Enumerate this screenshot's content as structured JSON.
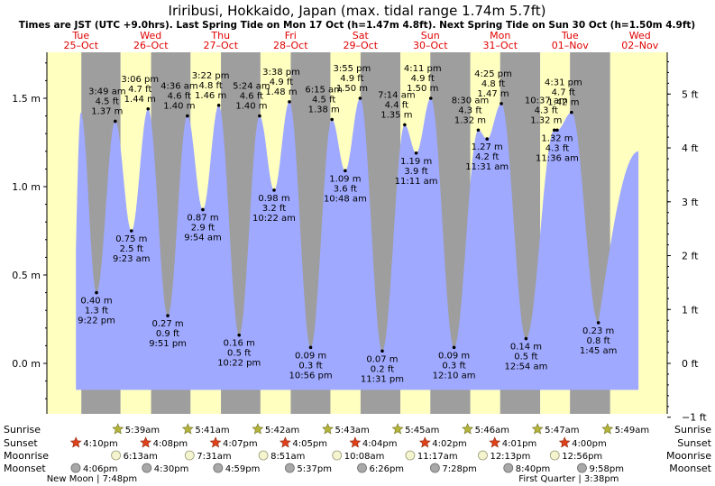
{
  "chart_data": {
    "type": "area",
    "title": "Iriribusi, Hokkaido, Japan (max. tidal range 1.74m 5.7ft)",
    "subtitle": "Times are JST (UTC +9.0hrs). Last Spring Tide on Mon 17 Oct (h=1.47m 4.8ft). Next Spring Tide on Sun 30 Oct (h=1.50m 4.9ft)",
    "ylim_m": [
      -0.25,
      1.75
    ],
    "y_ticks_m": [
      {
        "v": 1.5,
        "label": "1.5 m"
      },
      {
        "v": 1.0,
        "label": "1.0 m"
      },
      {
        "v": 0.5,
        "label": "0.5 m"
      },
      {
        "v": 0.0,
        "label": "0.0 m"
      }
    ],
    "y_ticks_ft": [
      {
        "v": 5,
        "label": "5 ft"
      },
      {
        "v": 4,
        "label": "4 ft"
      },
      {
        "v": 3,
        "label": "3 ft"
      },
      {
        "v": 2,
        "label": "2 ft"
      },
      {
        "v": 1,
        "label": "1 ft"
      },
      {
        "v": 0,
        "label": "0 ft"
      },
      {
        "v": -1,
        "label": "−1 ft"
      }
    ],
    "days": [
      {
        "name": "Tue",
        "date": "25–Oct"
      },
      {
        "name": "Wed",
        "date": "26–Oct"
      },
      {
        "name": "Thu",
        "date": "27–Oct"
      },
      {
        "name": "Fri",
        "date": "28–Oct"
      },
      {
        "name": "Sat",
        "date": "29–Oct"
      },
      {
        "name": "Sun",
        "date": "30–Oct"
      },
      {
        "name": "Mon",
        "date": "31–Oct"
      },
      {
        "name": "Tue",
        "date": "01–Nov"
      },
      {
        "name": "Wed",
        "date": "02–Nov"
      }
    ],
    "tides": [
      {
        "time": "9:22 pm",
        "m": "0.40 m",
        "ft": "1.3 ft",
        "v": 0.4,
        "h": 21.37,
        "type": "low"
      },
      {
        "time": "3:49 am",
        "m": "1.37 m",
        "ft": "4.5 ft",
        "v": 1.37,
        "h": 27.82,
        "type": "high"
      },
      {
        "time": "9:23 am",
        "m": "0.75 m",
        "ft": "2.5 ft",
        "v": 0.75,
        "h": 33.38,
        "type": "low"
      },
      {
        "time": "3:06 pm",
        "m": "1.44 m",
        "ft": "4.7 ft",
        "v": 1.44,
        "h": 39.1,
        "type": "high"
      },
      {
        "time": "9:51 pm",
        "m": "0.27 m",
        "ft": "0.9 ft",
        "v": 0.27,
        "h": 45.85,
        "type": "low"
      },
      {
        "time": "4:36 am",
        "m": "1.40 m",
        "ft": "4.6 ft",
        "v": 1.4,
        "h": 52.6,
        "type": "high"
      },
      {
        "time": "9:54 am",
        "m": "0.87 m",
        "ft": "2.9 ft",
        "v": 0.87,
        "h": 57.9,
        "type": "low"
      },
      {
        "time": "3:22 pm",
        "m": "1.46 m",
        "ft": "4.8 ft",
        "v": 1.46,
        "h": 63.37,
        "type": "high"
      },
      {
        "time": "10:22 pm",
        "m": "0.16 m",
        "ft": "0.5 ft",
        "v": 0.16,
        "h": 70.37,
        "type": "low"
      },
      {
        "time": "5:24 am",
        "m": "1.40 m",
        "ft": "4.6 ft",
        "v": 1.4,
        "h": 77.4,
        "type": "high"
      },
      {
        "time": "10:22 am",
        "m": "0.98 m",
        "ft": "3.2 ft",
        "v": 0.98,
        "h": 82.37,
        "type": "low"
      },
      {
        "time": "3:38 pm",
        "m": "1.48 m",
        "ft": "4.9 ft",
        "v": 1.48,
        "h": 87.63,
        "type": "high"
      },
      {
        "time": "10:56 pm",
        "m": "0.09 m",
        "ft": "0.3 ft",
        "v": 0.09,
        "h": 94.93,
        "type": "low"
      },
      {
        "time": "6:15 am",
        "m": "1.38 m",
        "ft": "4.5 ft",
        "v": 1.38,
        "h": 102.25,
        "type": "high"
      },
      {
        "time": "10:48 am",
        "m": "1.09 m",
        "ft": "3.6 ft",
        "v": 1.09,
        "h": 106.8,
        "type": "low"
      },
      {
        "time": "3:55 pm",
        "m": "1.50 m",
        "ft": "4.9 ft",
        "v": 1.5,
        "h": 111.92,
        "type": "high"
      },
      {
        "time": "11:31 pm",
        "m": "0.07 m",
        "ft": "0.2 ft",
        "v": 0.07,
        "h": 119.52,
        "type": "low"
      },
      {
        "time": "7:14 am",
        "m": "1.35 m",
        "ft": "4.4 ft",
        "v": 1.35,
        "h": 127.23,
        "type": "high"
      },
      {
        "time": "11:11 am",
        "m": "1.19 m",
        "ft": "3.9 ft",
        "v": 1.19,
        "h": 131.18,
        "type": "low"
      },
      {
        "time": "4:11 pm",
        "m": "1.50 m",
        "ft": "4.9 ft",
        "v": 1.5,
        "h": 136.18,
        "type": "high"
      },
      {
        "time": "12:10 am",
        "m": "0.09 m",
        "ft": "0.3 ft",
        "v": 0.09,
        "h": 144.17,
        "type": "low"
      },
      {
        "time": "8:30 am",
        "m": "1.32 m",
        "ft": "4.3 ft",
        "v": 1.32,
        "h": 152.5,
        "type": "high"
      },
      {
        "time": "11:31 am",
        "m": "1.27 m",
        "ft": "4.2 ft",
        "v": 1.27,
        "h": 155.52,
        "type": "low"
      },
      {
        "time": "4:25 pm",
        "m": "1.47 m",
        "ft": "4.8 ft",
        "v": 1.47,
        "h": 160.42,
        "type": "high"
      },
      {
        "time": "12:54 am",
        "m": "0.14 m",
        "ft": "0.5 ft",
        "v": 0.14,
        "h": 168.9,
        "type": "low"
      },
      {
        "time": "10:37 am",
        "m": "1.32 m",
        "ft": "4.3 ft",
        "v": 1.32,
        "h": 178.62,
        "type": "high"
      },
      {
        "time": "11:36 am",
        "m": "1.32 m",
        "ft": "4.3 ft",
        "v": 1.32,
        "h": 179.6,
        "type": "low"
      },
      {
        "time": "4:31 pm",
        "m": "1.42 m",
        "ft": "4.7 ft",
        "v": 1.42,
        "h": 184.52,
        "type": "high"
      },
      {
        "time": "1:45 am",
        "m": "0.23 m",
        "ft": "0.8 ft",
        "v": 0.23,
        "h": 193.75,
        "type": "low"
      }
    ],
    "rows": {
      "sunrise": "Sunrise",
      "sunset": "Sunset",
      "moonrise": "Moonrise",
      "moonset": "Moonset"
    },
    "sunrise": [
      {
        "time": "5:39am",
        "h": 29.65
      },
      {
        "time": "5:41am",
        "h": 53.68
      },
      {
        "time": "5:42am",
        "h": 77.7
      },
      {
        "time": "5:43am",
        "h": 101.72
      },
      {
        "time": "5:45am",
        "h": 125.75
      },
      {
        "time": "5:46am",
        "h": 149.77
      },
      {
        "time": "5:47am",
        "h": 173.78
      },
      {
        "time": "5:49am",
        "h": 197.82
      }
    ],
    "sunset": [
      {
        "time": "4:10pm",
        "h": 16.17
      },
      {
        "time": "4:08pm",
        "h": 40.13
      },
      {
        "time": "4:07pm",
        "h": 64.12
      },
      {
        "time": "4:05pm",
        "h": 88.08
      },
      {
        "time": "4:04pm",
        "h": 112.07
      },
      {
        "time": "4:02pm",
        "h": 136.03
      },
      {
        "time": "4:01pm",
        "h": 160.02
      },
      {
        "time": "4:00pm",
        "h": 184.0
      }
    ],
    "moonrise": [
      {
        "time": "6:13am",
        "h": 30.22
      },
      {
        "time": "7:31am",
        "h": 55.52
      },
      {
        "time": "8:51am",
        "h": 80.85
      },
      {
        "time": "10:08am",
        "h": 106.13
      },
      {
        "time": "11:17am",
        "h": 131.28
      },
      {
        "time": "12:13pm",
        "h": 156.22
      },
      {
        "time": "12:56pm",
        "h": 180.93
      }
    ],
    "moonset": [
      {
        "time": "4:06pm",
        "h": 16.1
      },
      {
        "time": "4:30pm",
        "h": 40.5
      },
      {
        "time": "4:59pm",
        "h": 64.98
      },
      {
        "time": "5:37pm",
        "h": 89.62
      },
      {
        "time": "6:26pm",
        "h": 114.43
      },
      {
        "time": "7:28pm",
        "h": 139.47
      },
      {
        "time": "8:40pm",
        "h": 164.67
      },
      {
        "time": "9:58pm",
        "h": 189.97
      }
    ],
    "notes": [
      {
        "text": "New Moon | 7:48pm",
        "h": 19.8
      },
      {
        "text": "First Quarter | 3:38pm",
        "h": 183.6
      }
    ],
    "colors": {
      "water": "#9fa9ff",
      "day": "#ffffc0",
      "night": "#9e9e9e",
      "sunrise": "#b5b53c",
      "sunset": "#e0401a",
      "moon": "#d6d6b8",
      "moonset": "#a8a8a8"
    }
  }
}
